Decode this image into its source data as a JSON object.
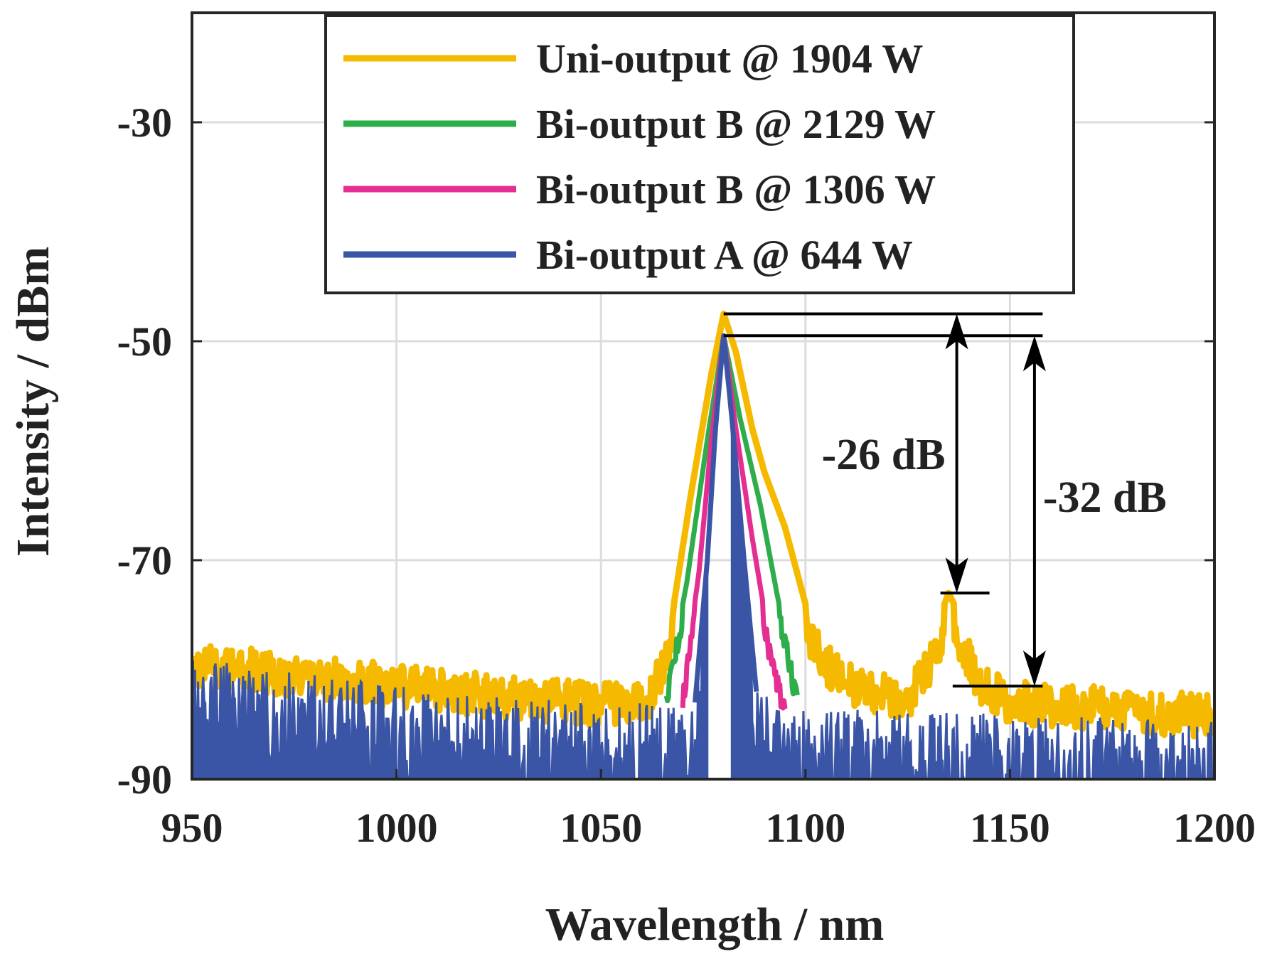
{
  "chart_data": {
    "type": "line",
    "xlabel": "Wavelength / nm",
    "ylabel": "Intensity / dBm",
    "xlim": [
      950,
      1200
    ],
    "ylim": [
      -90,
      -20
    ],
    "xticks": [
      950,
      1000,
      1050,
      1100,
      1150,
      1200
    ],
    "yticks": [
      -30,
      -50,
      -70,
      -90
    ],
    "grid": true,
    "legend_position": "top",
    "series": [
      {
        "name": "Uni-output @ 1904 W",
        "color": "#F5BA00",
        "points": [
          [
            950,
            -77.5
          ],
          [
            975,
            -78.5
          ],
          [
            1000,
            -79.5
          ],
          [
            1025,
            -80.5
          ],
          [
            1050,
            -81.2
          ],
          [
            1062,
            -81.0
          ],
          [
            1067,
            -76
          ],
          [
            1072,
            -64
          ],
          [
            1077,
            -53
          ],
          [
            1080,
            -47.5
          ],
          [
            1083,
            -51
          ],
          [
            1087,
            -58
          ],
          [
            1090,
            -62
          ],
          [
            1095,
            -67
          ],
          [
            1100,
            -74
          ],
          [
            1105,
            -77.5
          ],
          [
            1112,
            -79.5
          ],
          [
            1120,
            -80.5
          ],
          [
            1126,
            -80.3
          ],
          [
            1131,
            -77
          ],
          [
            1135,
            -73
          ],
          [
            1139,
            -76
          ],
          [
            1143,
            -79.5
          ],
          [
            1150,
            -81
          ],
          [
            1175,
            -81.6
          ],
          [
            1200,
            -82.3
          ]
        ]
      },
      {
        "name": "Bi-output B @ 2129 W",
        "color": "#2EAD4B",
        "points": [
          [
            1066,
            -82
          ],
          [
            1071,
            -72
          ],
          [
            1076,
            -59
          ],
          [
            1080,
            -49.5
          ],
          [
            1084,
            -57
          ],
          [
            1089,
            -65
          ],
          [
            1093,
            -73
          ],
          [
            1098,
            -82
          ]
        ]
      },
      {
        "name": "Bi-output B @ 1306 W",
        "color": "#E52E92",
        "points": [
          [
            1070,
            -82
          ],
          [
            1074,
            -71
          ],
          [
            1077,
            -59
          ],
          [
            1080,
            -49.5
          ],
          [
            1083,
            -58
          ],
          [
            1087,
            -68
          ],
          [
            1091,
            -77
          ],
          [
            1095,
            -83
          ]
        ]
      },
      {
        "name": "Bi-output A @ 644 W",
        "color": "#3A55A6",
        "points": [
          [
            950,
            -79
          ],
          [
            975,
            -80
          ],
          [
            1000,
            -81.5
          ],
          [
            1025,
            -82.5
          ],
          [
            1050,
            -83
          ],
          [
            1073,
            -83
          ],
          [
            1076,
            -70
          ],
          [
            1078,
            -58
          ],
          [
            1080,
            -49.5
          ],
          [
            1082,
            -57
          ],
          [
            1085,
            -70
          ],
          [
            1088,
            -82
          ],
          [
            1100,
            -83.5
          ],
          [
            1150,
            -84
          ],
          [
            1200,
            -84.8
          ]
        ]
      }
    ],
    "annotations": [
      {
        "text": "-26 dB",
        "x": 1137,
        "y_top": -47.5,
        "y_bottom": -73
      },
      {
        "text": "-32 dB",
        "x": 1156,
        "y_top": -49.5,
        "y_bottom": -81.5
      }
    ]
  }
}
